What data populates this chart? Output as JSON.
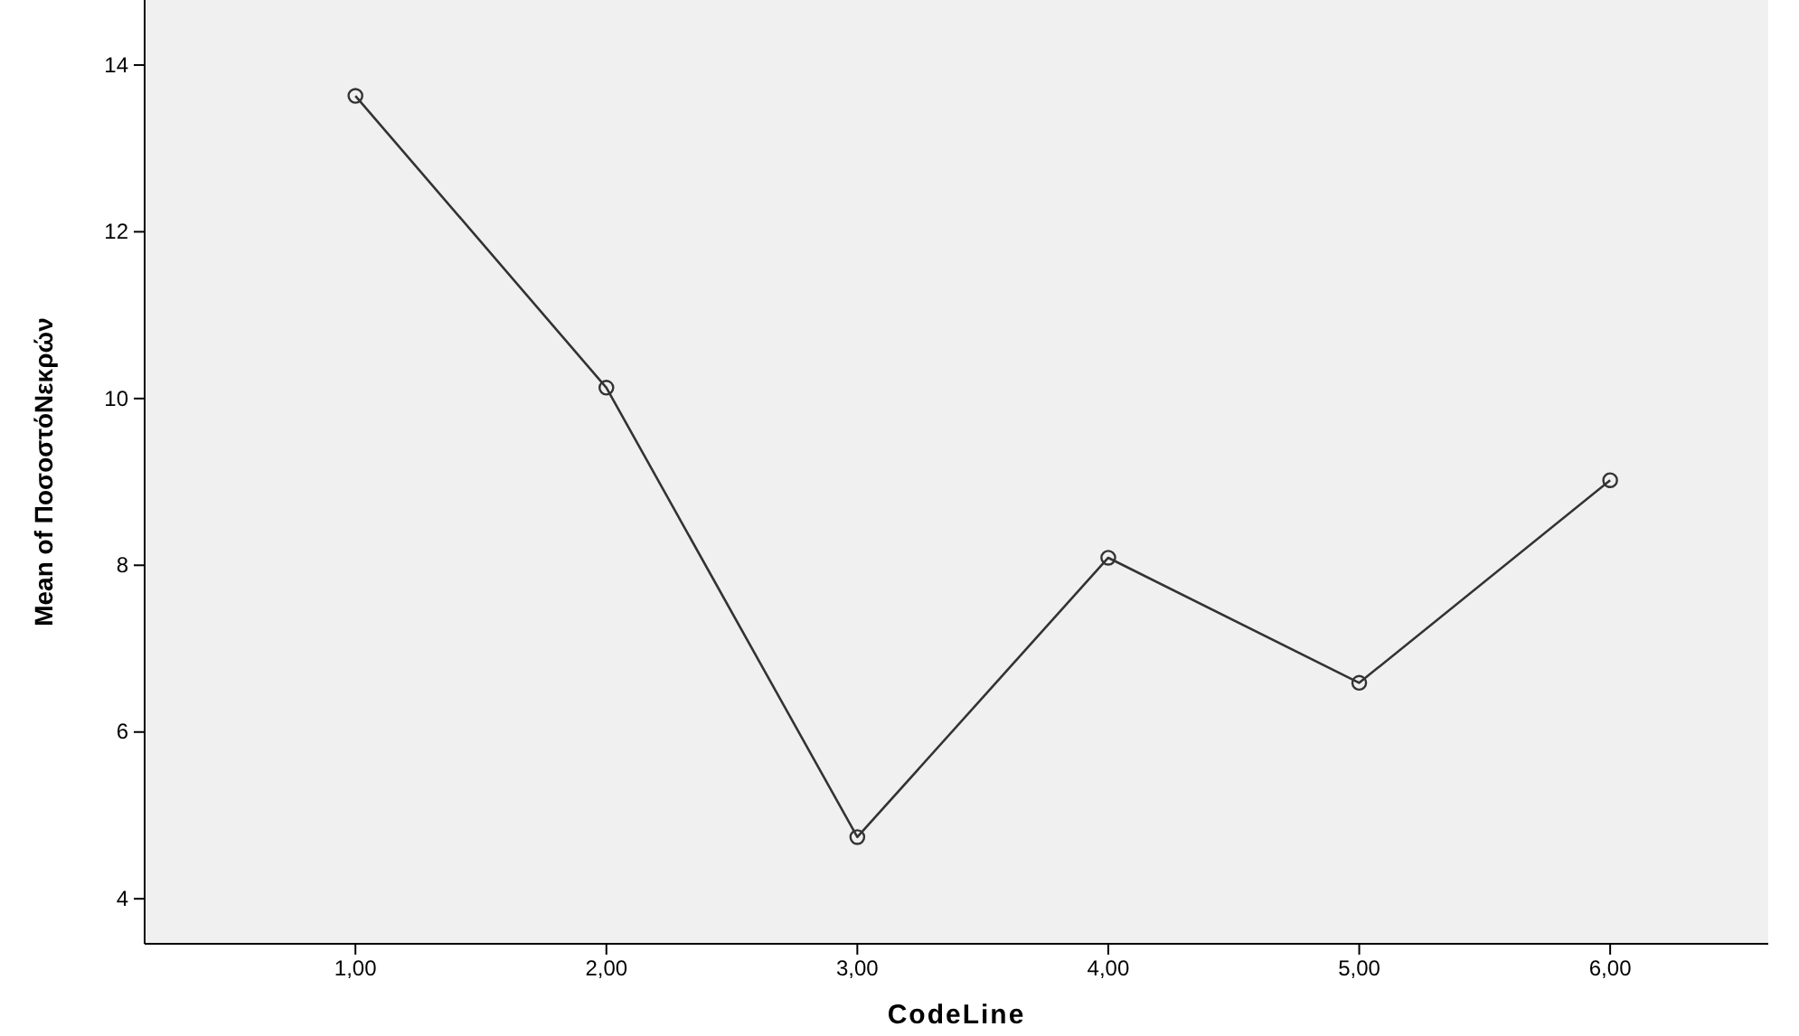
{
  "chart_data": {
    "type": "line",
    "xlabel": "CodeLine",
    "ylabel": "Mean of ΠοσοστόΝεκρών",
    "x": [
      1,
      2,
      3,
      4,
      5,
      6
    ],
    "series": [
      {
        "color": "#333333",
        "values": [
          13.63,
          10.13,
          4.74,
          8.09,
          6.59,
          9.02
        ]
      }
    ],
    "xlim": [
      0.16,
      6.63
    ],
    "xticks": [
      {
        "value": 1,
        "label": "1,00"
      },
      {
        "value": 2,
        "label": "2,00"
      },
      {
        "value": 3,
        "label": "3,00"
      },
      {
        "value": 4,
        "label": "4,00"
      },
      {
        "value": 5,
        "label": "5,00"
      },
      {
        "value": 6,
        "label": "6,00"
      }
    ],
    "ylim": [
      3.46,
      14.78
    ],
    "yticks": [
      4,
      6,
      8,
      10,
      12,
      14
    ],
    "grid": false,
    "marker": "circle",
    "line_style": "solid"
  }
}
